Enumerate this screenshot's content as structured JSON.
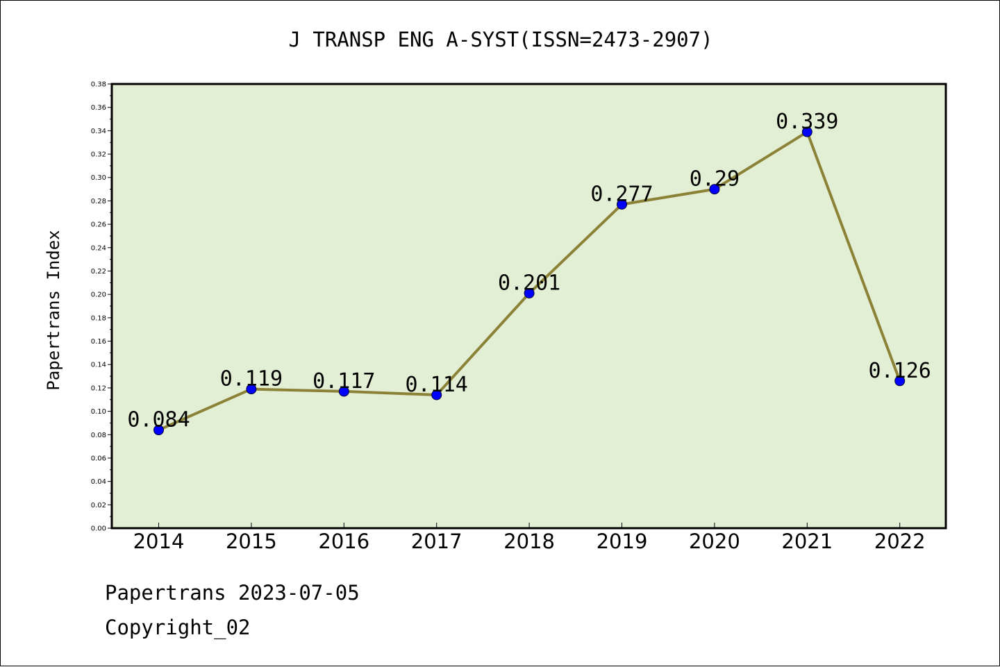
{
  "chart_data": {
    "type": "line",
    "title": "J TRANSP ENG A-SYST(ISSN=2473-2907)",
    "xlabel": "",
    "ylabel": "Papertrans Index",
    "categories": [
      "2014",
      "2015",
      "2016",
      "2017",
      "2018",
      "2019",
      "2020",
      "2021",
      "2022"
    ],
    "values": [
      0.084,
      0.119,
      0.117,
      0.114,
      0.201,
      0.277,
      0.29,
      0.339,
      0.126
    ],
    "data_labels": [
      "0.084",
      "0.119",
      "0.117",
      "0.114",
      "0.201",
      "0.277",
      "0.29",
      "0.339",
      "0.126"
    ],
    "ylim": [
      0,
      0.38
    ],
    "yticks": [
      "0.00",
      "0.02",
      "0.04",
      "0.06",
      "0.08",
      "0.10",
      "0.12",
      "0.14",
      "0.16",
      "0.18",
      "0.20",
      "0.22",
      "0.24",
      "0.26",
      "0.28",
      "0.30",
      "0.32",
      "0.34",
      "0.36",
      "0.38"
    ],
    "grid": false,
    "legend": "none",
    "colors": {
      "plot_background": "#e2efd5",
      "line": "#8b8237",
      "marker": "#0000ff"
    }
  },
  "footer": {
    "date_line": "Papertrans 2023-07-05",
    "copyright": "Copyright_02"
  }
}
